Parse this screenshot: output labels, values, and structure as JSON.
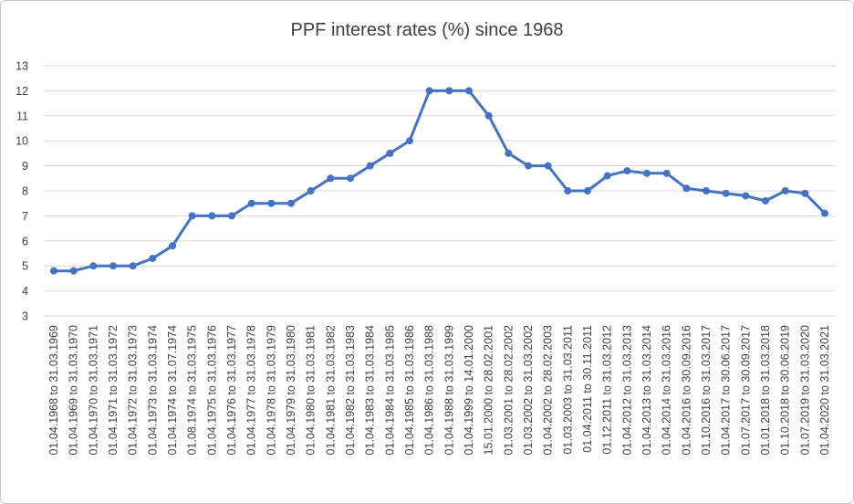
{
  "chart_data": {
    "type": "line",
    "title": "PPF interest rates (%) since 1968",
    "xlabel": "",
    "ylabel": "",
    "ylim": [
      3,
      13
    ],
    "yticks": [
      3,
      4,
      5,
      6,
      7,
      8,
      9,
      10,
      11,
      12,
      13
    ],
    "grid": true,
    "legend": "none",
    "colors": {
      "line": "#4472c4",
      "grid": "#d9d9d9",
      "text": "#404040"
    },
    "categories": [
      "01.04.1968 to 31.03.1969",
      "01.04.1969 to 31.03.1970",
      "01.04.1970 to 31.03.1971",
      "01.04.1971 to 31.03.1972",
      "01.04.1972 to 31.03.1973",
      "01.04.1973 to 31.03.1974",
      "01.04.1974 to 31.07.1974",
      "01.08.1974 to 31.03.1975",
      "01.04.1975 to 31.03.1976",
      "01.04.1976 to 31.03.1977",
      "01.04.1977 to 31.03.1978",
      "01.04.1978 to 31.03.1979",
      "01.04.1979 to 31.03.1980",
      "01.04.1980 to 31.03.1981",
      "01.04.1981 to 31.03.1982",
      "01.04.1982 to 31.03.1983",
      "01.04.1983 to 31.03.1984",
      "01.04.1984 to 31.03.1985",
      "01.04.1985 to 31.03.1986",
      "01.04.1986 to 31.03.1988",
      "01.04.1988 to 31.03.1999",
      "01.04.1999 to 14.01.2000",
      "15.01.2000 to 28.02.2001",
      "01.03.2001 to 28.02.2002",
      "01.03.2002 to 31.03.2002",
      "01.04.2002 to 28.02.2003",
      "01.03.2003 to 31.03.2011",
      "01.04.2011 to 30.11.2011",
      "01.12.2011 to 31.03.2012",
      "01.04.2012 to 31.03.2013",
      "01.04.2013 to 31.03.2014",
      "01.04.2014 to 31.03.2016",
      "01.04.2016 to 30.09.2016",
      "01.10.2016 to 31.03.2017",
      "01.04.2017 to 30.06.2017",
      "01.07.2017 to 30.09.2017",
      "01.01.2018 to 31.03.2018",
      "01.10.2018 to 30.06.2019",
      "01.07.2019 to 31.03.2020",
      "01.04.2020 to 31.03.2021"
    ],
    "values": [
      4.8,
      4.8,
      5.0,
      5.0,
      5.0,
      5.3,
      5.8,
      7.0,
      7.0,
      7.0,
      7.5,
      7.5,
      7.5,
      8.0,
      8.5,
      8.5,
      9.0,
      9.5,
      10.0,
      12.0,
      12.0,
      12.0,
      11.0,
      9.5,
      9.0,
      9.0,
      8.0,
      8.0,
      8.6,
      8.8,
      8.7,
      8.7,
      8.1,
      8.0,
      7.9,
      7.8,
      7.6,
      8.0,
      7.9,
      7.1
    ]
  }
}
